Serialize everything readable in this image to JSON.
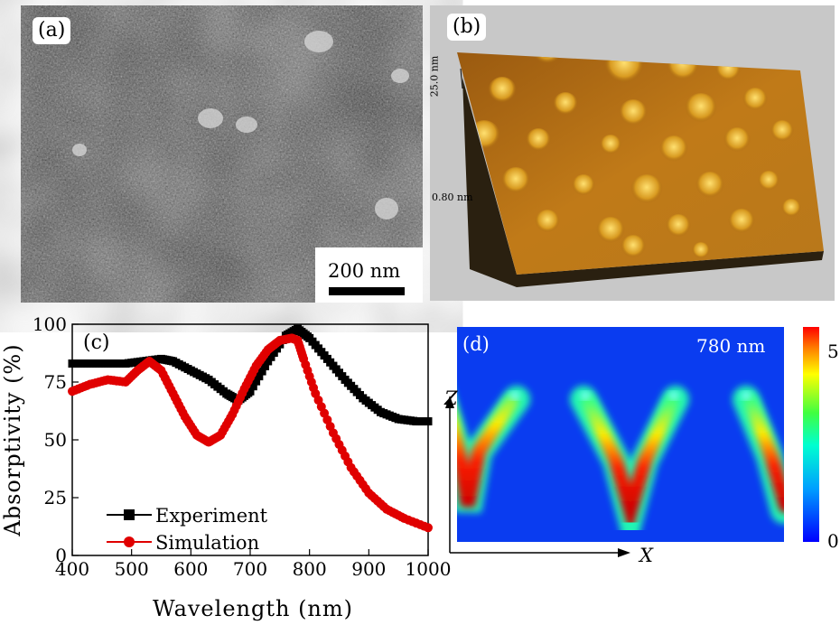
{
  "panels": {
    "a": {
      "label": "(a)",
      "scale_bar": "200 nm"
    },
    "b": {
      "label": "(b)",
      "z_top": "25.0 nm",
      "z_bottom": "0.80 nm"
    },
    "c": {
      "label": "(c)"
    },
    "d": {
      "label": "(d)",
      "wavelength": "780 nm",
      "z_axis": "Z",
      "x_axis": "X",
      "colorbar_max": "5",
      "colorbar_min": "0"
    }
  },
  "chart_data": {
    "type": "line",
    "xlabel": "Wavelength (nm)",
    "ylabel": "Absorptivity (%)",
    "xlim": [
      400,
      1000
    ],
    "ylim": [
      0,
      100
    ],
    "xticks": [
      400,
      500,
      600,
      700,
      800,
      900,
      1000
    ],
    "yticks": [
      0,
      25,
      50,
      75,
      100
    ],
    "legend_placement": "bottom-left",
    "series": [
      {
        "name": "Experiment",
        "color": "#000000",
        "marker": "square",
        "x": [
          400,
          430,
          460,
          490,
          520,
          550,
          570,
          600,
          630,
          660,
          680,
          700,
          730,
          760,
          780,
          800,
          830,
          860,
          890,
          920,
          950,
          980,
          1000
        ],
        "values": [
          83,
          83,
          83,
          83,
          84,
          85,
          84,
          80,
          76,
          70,
          67,
          71,
          84,
          95,
          98,
          94,
          85,
          76,
          68,
          62,
          59,
          58,
          58
        ]
      },
      {
        "name": "Simulation",
        "color": "#e00000",
        "marker": "circle",
        "x": [
          400,
          430,
          460,
          490,
          510,
          530,
          550,
          570,
          590,
          610,
          630,
          650,
          670,
          690,
          710,
          730,
          750,
          770,
          780,
          790,
          810,
          840,
          870,
          900,
          930,
          960,
          1000
        ],
        "values": [
          71,
          74,
          76,
          75,
          80,
          84,
          80,
          70,
          60,
          52,
          49,
          52,
          61,
          72,
          82,
          89,
          93,
          94,
          93,
          85,
          70,
          53,
          38,
          27,
          20,
          16,
          12
        ]
      }
    ]
  }
}
